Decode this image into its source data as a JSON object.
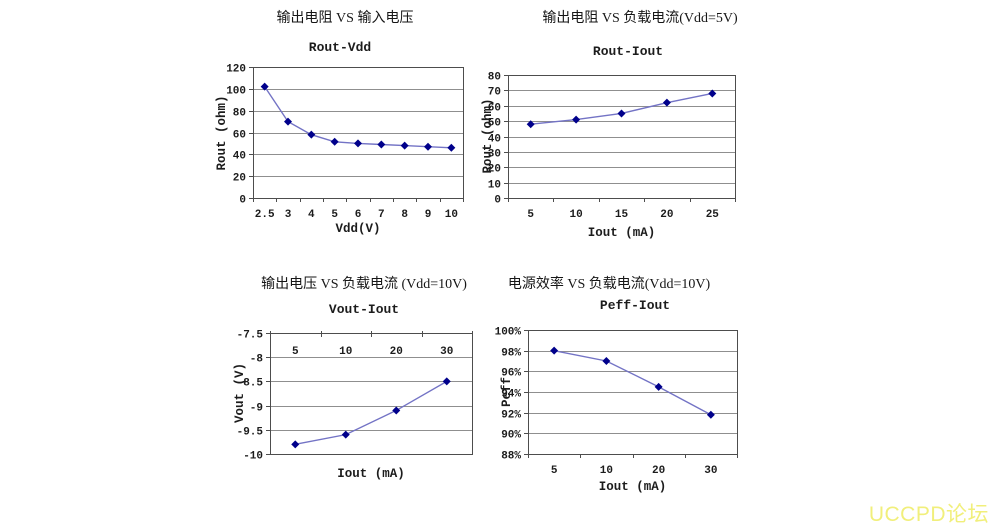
{
  "watermark": {
    "text": "UCCPD论坛",
    "color": "#f1ef7b"
  },
  "colors": {
    "line": "#7373c5",
    "marker": "#00008b",
    "grid": "#8f8f8f",
    "frame": "#4d4d4d",
    "background": "#ffffff"
  },
  "chart_data": [
    {
      "id": "rout-vdd",
      "type": "line",
      "heading": "输出电阻 VS 输入电压",
      "title": "Rout-Vdd",
      "xlabel": "Vdd(V)",
      "ylabel": "Rout (ohm)",
      "categories": [
        "2.5",
        "3",
        "4",
        "5",
        "6",
        "7",
        "8",
        "9",
        "10"
      ],
      "values": [
        102,
        70,
        58,
        51.5,
        50,
        49,
        48,
        47,
        46
      ],
      "ymin": 0,
      "ymax": 120,
      "ystep": 20,
      "ytick_labels": [
        "120",
        "100",
        "80",
        "60",
        "40",
        "20",
        "0"
      ],
      "grid": true,
      "legend": false,
      "x_tick_label_position": "bottom"
    },
    {
      "id": "rout-iout",
      "type": "line",
      "heading": "输出电阻 VS 负载电流(Vdd=5V)",
      "title": "Rout-Iout",
      "xlabel": "Iout (mA)",
      "ylabel": "Rout (ohm)",
      "categories": [
        "5",
        "10",
        "15",
        "20",
        "25"
      ],
      "values": [
        48,
        51,
        55,
        62,
        68
      ],
      "ymin": 0,
      "ymax": 80,
      "ystep": 10,
      "ytick_labels": [
        "80",
        "70",
        "60",
        "50",
        "40",
        "30",
        "20",
        "10",
        "0"
      ],
      "grid": true,
      "legend": false,
      "x_tick_label_position": "bottom"
    },
    {
      "id": "vout-iout",
      "type": "line",
      "heading": "输出电压 VS 负载电流 (Vdd=10V)",
      "title": "Vout-Iout",
      "xlabel": "Iout (mA)",
      "ylabel": "Vout (V)",
      "categories": [
        "5",
        "10",
        "20",
        "30"
      ],
      "values": [
        -9.8,
        -9.6,
        -9.1,
        -8.5
      ],
      "ymin": -10,
      "ymax": -7.5,
      "ystep": 0.5,
      "ytick_labels": [
        "-7.5",
        "-8",
        "-8.5",
        "-9",
        "-9.5",
        "-10"
      ],
      "grid": true,
      "legend": false,
      "x_tick_label_position": "inside-top"
    },
    {
      "id": "peff-iout",
      "type": "line",
      "heading": "电源效率 VS 负载电流(Vdd=10V)",
      "title": "Peff-Iout",
      "xlabel": "Iout (mA)",
      "ylabel": "Peff",
      "categories": [
        "5",
        "10",
        "20",
        "30"
      ],
      "values": [
        98,
        97,
        94.5,
        91.8
      ],
      "ymin": 88,
      "ymax": 100,
      "ystep": 2,
      "ytick_labels": [
        "100%",
        "98%",
        "96%",
        "94%",
        "92%",
        "90%",
        "88%"
      ],
      "grid": true,
      "legend": false,
      "x_tick_label_position": "bottom"
    }
  ]
}
